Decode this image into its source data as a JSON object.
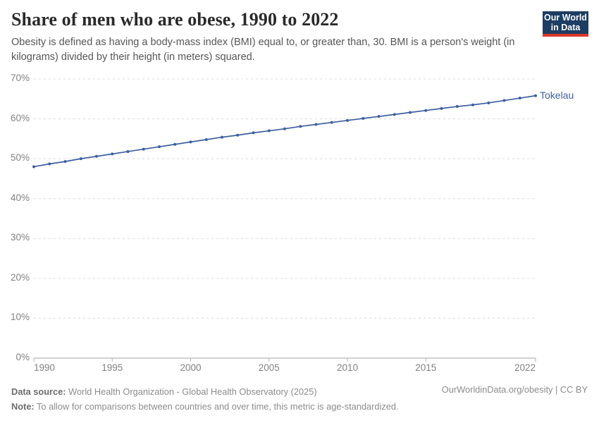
{
  "header": {
    "title": "Share of men who are obese, 1990 to 2022",
    "subtitle": "Obesity is defined as having a body-mass index (BMI) equal to, or greater than, 30. BMI is a person's weight (in kilograms) divided by their height (in meters) squared.",
    "logo": {
      "line1": "Our World",
      "line2": "in Data",
      "bg_color": "#1d3d63",
      "stripe_color": "#dd3727"
    }
  },
  "chart_data": {
    "type": "line",
    "title": "Share of men who are obese, 1990 to 2022",
    "xlabel": "",
    "ylabel": "",
    "xlim": [
      1990,
      2022
    ],
    "ylim": [
      0,
      70
    ],
    "y_ticks": [
      0,
      10,
      20,
      30,
      40,
      50,
      60,
      70
    ],
    "y_tick_suffix": "%",
    "x_ticks": [
      1990,
      1995,
      2000,
      2005,
      2010,
      2015,
      2022
    ],
    "grid": "horizontal-dashed",
    "legend": "end-of-line-label",
    "x": [
      1990,
      1991,
      1992,
      1993,
      1994,
      1995,
      1996,
      1997,
      1998,
      1999,
      2000,
      2001,
      2002,
      2003,
      2004,
      2005,
      2006,
      2007,
      2008,
      2009,
      2010,
      2011,
      2012,
      2013,
      2014,
      2015,
      2016,
      2017,
      2018,
      2019,
      2020,
      2021,
      2022
    ],
    "series": [
      {
        "name": "Tokelau",
        "color": "#3d5fa0",
        "values": [
          48.0,
          48.7,
          49.3,
          50.0,
          50.6,
          51.2,
          51.8,
          52.4,
          53.0,
          53.6,
          54.2,
          54.8,
          55.4,
          55.9,
          56.5,
          57.0,
          57.5,
          58.1,
          58.6,
          59.1,
          59.6,
          60.1,
          60.6,
          61.1,
          61.6,
          62.1,
          62.6,
          63.1,
          63.5,
          64.0,
          64.6,
          65.2,
          65.8
        ]
      }
    ]
  },
  "footer": {
    "data_source_label": "Data source:",
    "data_source": "World Health Organization - Global Health Observatory (2025)",
    "note_label": "Note:",
    "note": "To allow for comparisons between countries and over time, this metric is age-standardized.",
    "credit": "OurWorldinData.org/obesity | CC BY"
  }
}
